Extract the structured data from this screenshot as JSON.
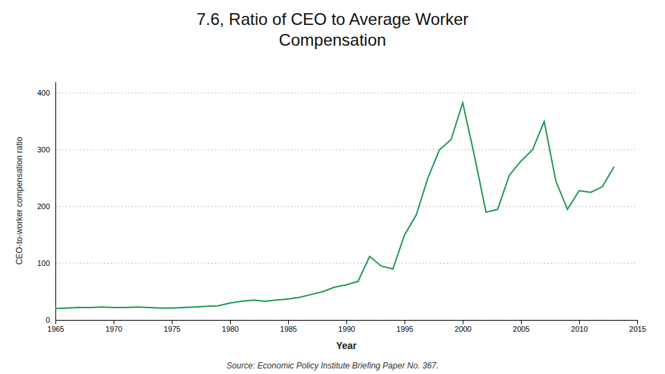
{
  "chart_data": {
    "type": "line",
    "title": "7.6, Ratio of CEO to Average Worker\nCompensation",
    "x_label": "Year",
    "y_label": "CEO-to-worker compensation ratio",
    "source": "Source: Economic Policy Institute Briefing Paper No. 367.",
    "color": "#1a9850",
    "grid": true,
    "xlim": [
      1965,
      2015
    ],
    "ylim": [
      0,
      420
    ],
    "xticks": [
      1965,
      1970,
      1975,
      1980,
      1985,
      1990,
      1995,
      2000,
      2005,
      2010,
      2015
    ],
    "yticks": [
      0,
      100,
      200,
      300,
      400
    ],
    "x": [
      1965,
      1966,
      1967,
      1968,
      1969,
      1970,
      1971,
      1972,
      1973,
      1974,
      1975,
      1976,
      1977,
      1978,
      1979,
      1980,
      1981,
      1982,
      1983,
      1984,
      1985,
      1986,
      1987,
      1988,
      1989,
      1990,
      1991,
      1992,
      1993,
      1994,
      1995,
      1996,
      1997,
      1998,
      1999,
      2000,
      2001,
      2002,
      2003,
      2004,
      2005,
      2006,
      2007,
      2008,
      2009,
      2010,
      2011,
      2012,
      2013
    ],
    "values": [
      20,
      21,
      22,
      22,
      23,
      22,
      22,
      23,
      22,
      21,
      21,
      22,
      23,
      24,
      25,
      30,
      33,
      35,
      33,
      35,
      37,
      40,
      45,
      50,
      58,
      62,
      68,
      112,
      95,
      90,
      150,
      185,
      250,
      300,
      318,
      383,
      290,
      190,
      195,
      255,
      280,
      300,
      350,
      245,
      195,
      228,
      225,
      235,
      270
    ]
  }
}
